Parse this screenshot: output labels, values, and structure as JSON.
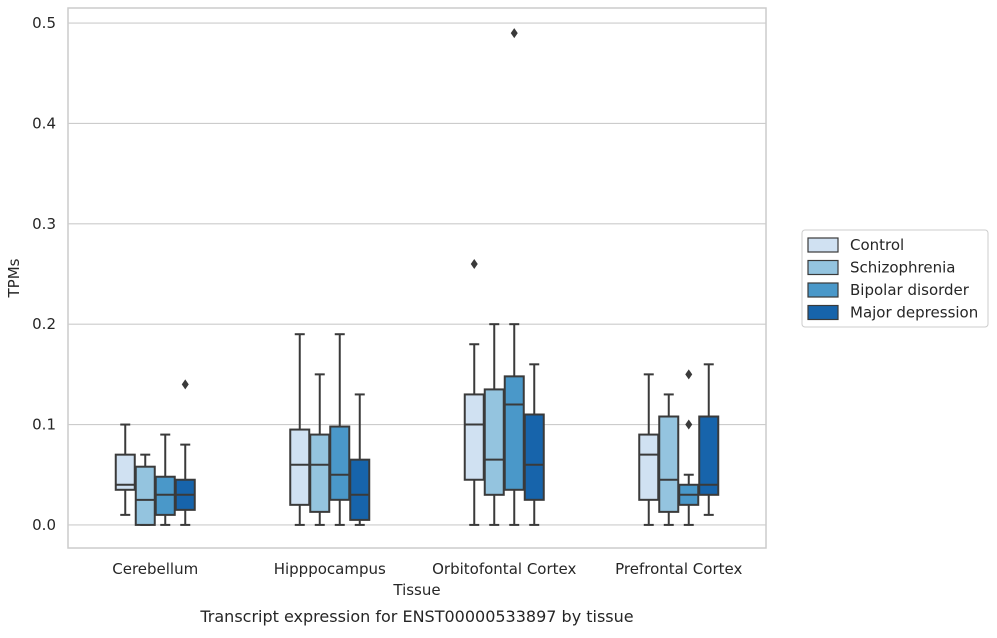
{
  "chart_data": {
    "type": "box",
    "caption": "Transcript expression for ENST00000533897 by tissue",
    "xlabel": "Tissue",
    "ylabel": "TPMs",
    "ylim": [
      -0.023,
      0.515
    ],
    "yticks": [
      0.0,
      0.1,
      0.2,
      0.3,
      0.4,
      0.5
    ],
    "ytick_labels": [
      "0.0",
      "0.1",
      "0.2",
      "0.3",
      "0.4",
      "0.5"
    ],
    "grid": "horizontal",
    "legend_position": "right, outside plot",
    "categories": [
      "Cerebellum",
      "Hipppocampus",
      "Orbitofontal Cortex",
      "Prefrontal Cortex"
    ],
    "series": [
      {
        "name": "Control",
        "color": "#d0e1f2",
        "boxes": [
          {
            "whisker_low": 0.01,
            "q1": 0.035,
            "median": 0.04,
            "q3": 0.07,
            "whisker_high": 0.1,
            "outliers": []
          },
          {
            "whisker_low": 0.0,
            "q1": 0.02,
            "median": 0.06,
            "q3": 0.095,
            "whisker_high": 0.19,
            "outliers": []
          },
          {
            "whisker_low": 0.0,
            "q1": 0.045,
            "median": 0.1,
            "q3": 0.13,
            "whisker_high": 0.18,
            "outliers": [
              0.26
            ]
          },
          {
            "whisker_low": 0.0,
            "q1": 0.025,
            "median": 0.07,
            "q3": 0.09,
            "whisker_high": 0.15,
            "outliers": []
          }
        ]
      },
      {
        "name": "Schizophrenia",
        "color": "#94c4df",
        "boxes": [
          {
            "whisker_low": 0.0,
            "q1": 0.0,
            "median": 0.025,
            "q3": 0.058,
            "whisker_high": 0.07,
            "outliers": []
          },
          {
            "whisker_low": 0.0,
            "q1": 0.013,
            "median": 0.06,
            "q3": 0.09,
            "whisker_high": 0.15,
            "outliers": []
          },
          {
            "whisker_low": 0.0,
            "q1": 0.03,
            "median": 0.065,
            "q3": 0.135,
            "whisker_high": 0.2,
            "outliers": []
          },
          {
            "whisker_low": 0.0,
            "q1": 0.013,
            "median": 0.045,
            "q3": 0.108,
            "whisker_high": 0.13,
            "outliers": []
          }
        ]
      },
      {
        "name": "Bipolar disorder",
        "color": "#4a98c9",
        "boxes": [
          {
            "whisker_low": 0.0,
            "q1": 0.01,
            "median": 0.03,
            "q3": 0.048,
            "whisker_high": 0.09,
            "outliers": []
          },
          {
            "whisker_low": 0.0,
            "q1": 0.025,
            "median": 0.05,
            "q3": 0.098,
            "whisker_high": 0.19,
            "outliers": []
          },
          {
            "whisker_low": 0.0,
            "q1": 0.035,
            "median": 0.12,
            "q3": 0.148,
            "whisker_high": 0.2,
            "outliers": [
              0.49
            ]
          },
          {
            "whisker_low": 0.0,
            "q1": 0.02,
            "median": 0.03,
            "q3": 0.04,
            "whisker_high": 0.05,
            "outliers": [
              0.1,
              0.15
            ]
          }
        ]
      },
      {
        "name": "Major depression",
        "color": "#1764ab",
        "boxes": [
          {
            "whisker_low": 0.0,
            "q1": 0.015,
            "median": 0.03,
            "q3": 0.045,
            "whisker_high": 0.08,
            "outliers": [
              0.14
            ]
          },
          {
            "whisker_low": 0.0,
            "q1": 0.005,
            "median": 0.03,
            "q3": 0.065,
            "whisker_high": 0.13,
            "outliers": []
          },
          {
            "whisker_low": 0.0,
            "q1": 0.025,
            "median": 0.06,
            "q3": 0.11,
            "whisker_high": 0.16,
            "outliers": []
          },
          {
            "whisker_low": 0.01,
            "q1": 0.03,
            "median": 0.04,
            "q3": 0.108,
            "whisker_high": 0.16,
            "outliers": []
          }
        ]
      }
    ]
  }
}
